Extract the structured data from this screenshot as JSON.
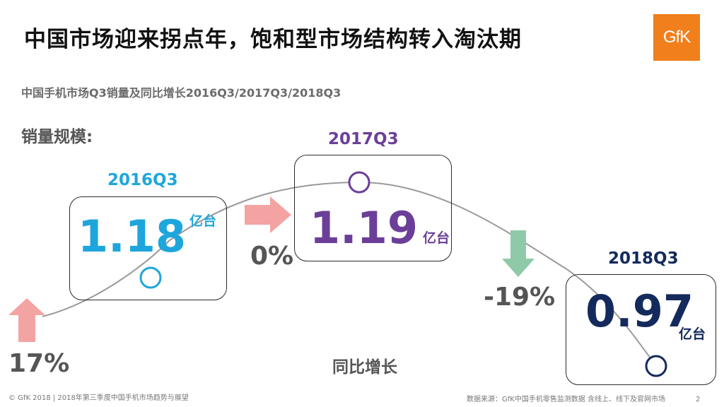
{
  "slide": {
    "title": "中国市场迎来拐点年，饱和型市场结构转入淘汰期",
    "logo_text": "GfK",
    "subtitle": "中国手机市场Q3销量及同比增长2016Q3/2017Q3/2018Q3",
    "section_label": "销量规模:",
    "growth_label": "同比增长",
    "page_number": "2"
  },
  "periods": [
    {
      "label": "2016Q3",
      "value": "1.18",
      "unit": "亿台",
      "color": "#1ea6dc"
    },
    {
      "label": "2017Q3",
      "value": "1.19",
      "unit": "亿台",
      "color": "#6b3f98"
    },
    {
      "label": "2018Q3",
      "value": "0.97",
      "unit": "亿台",
      "color": "#142a5c"
    }
  ],
  "growth": [
    {
      "text": "17%",
      "direction": "up",
      "arrow_color": "#f4a3a3"
    },
    {
      "text": "0%",
      "direction": "right",
      "arrow_color": "#f4a3a3"
    },
    {
      "text": "-19%",
      "direction": "down",
      "arrow_color": "#8fcaa8"
    }
  ],
  "footer": {
    "left_text": "© GfK 2018 | 2018年第三季度中国手机市场趋势与展望",
    "right_text": "数据来源：GfK中国手机零售监测数据 含线上、线下及官网市场"
  }
}
